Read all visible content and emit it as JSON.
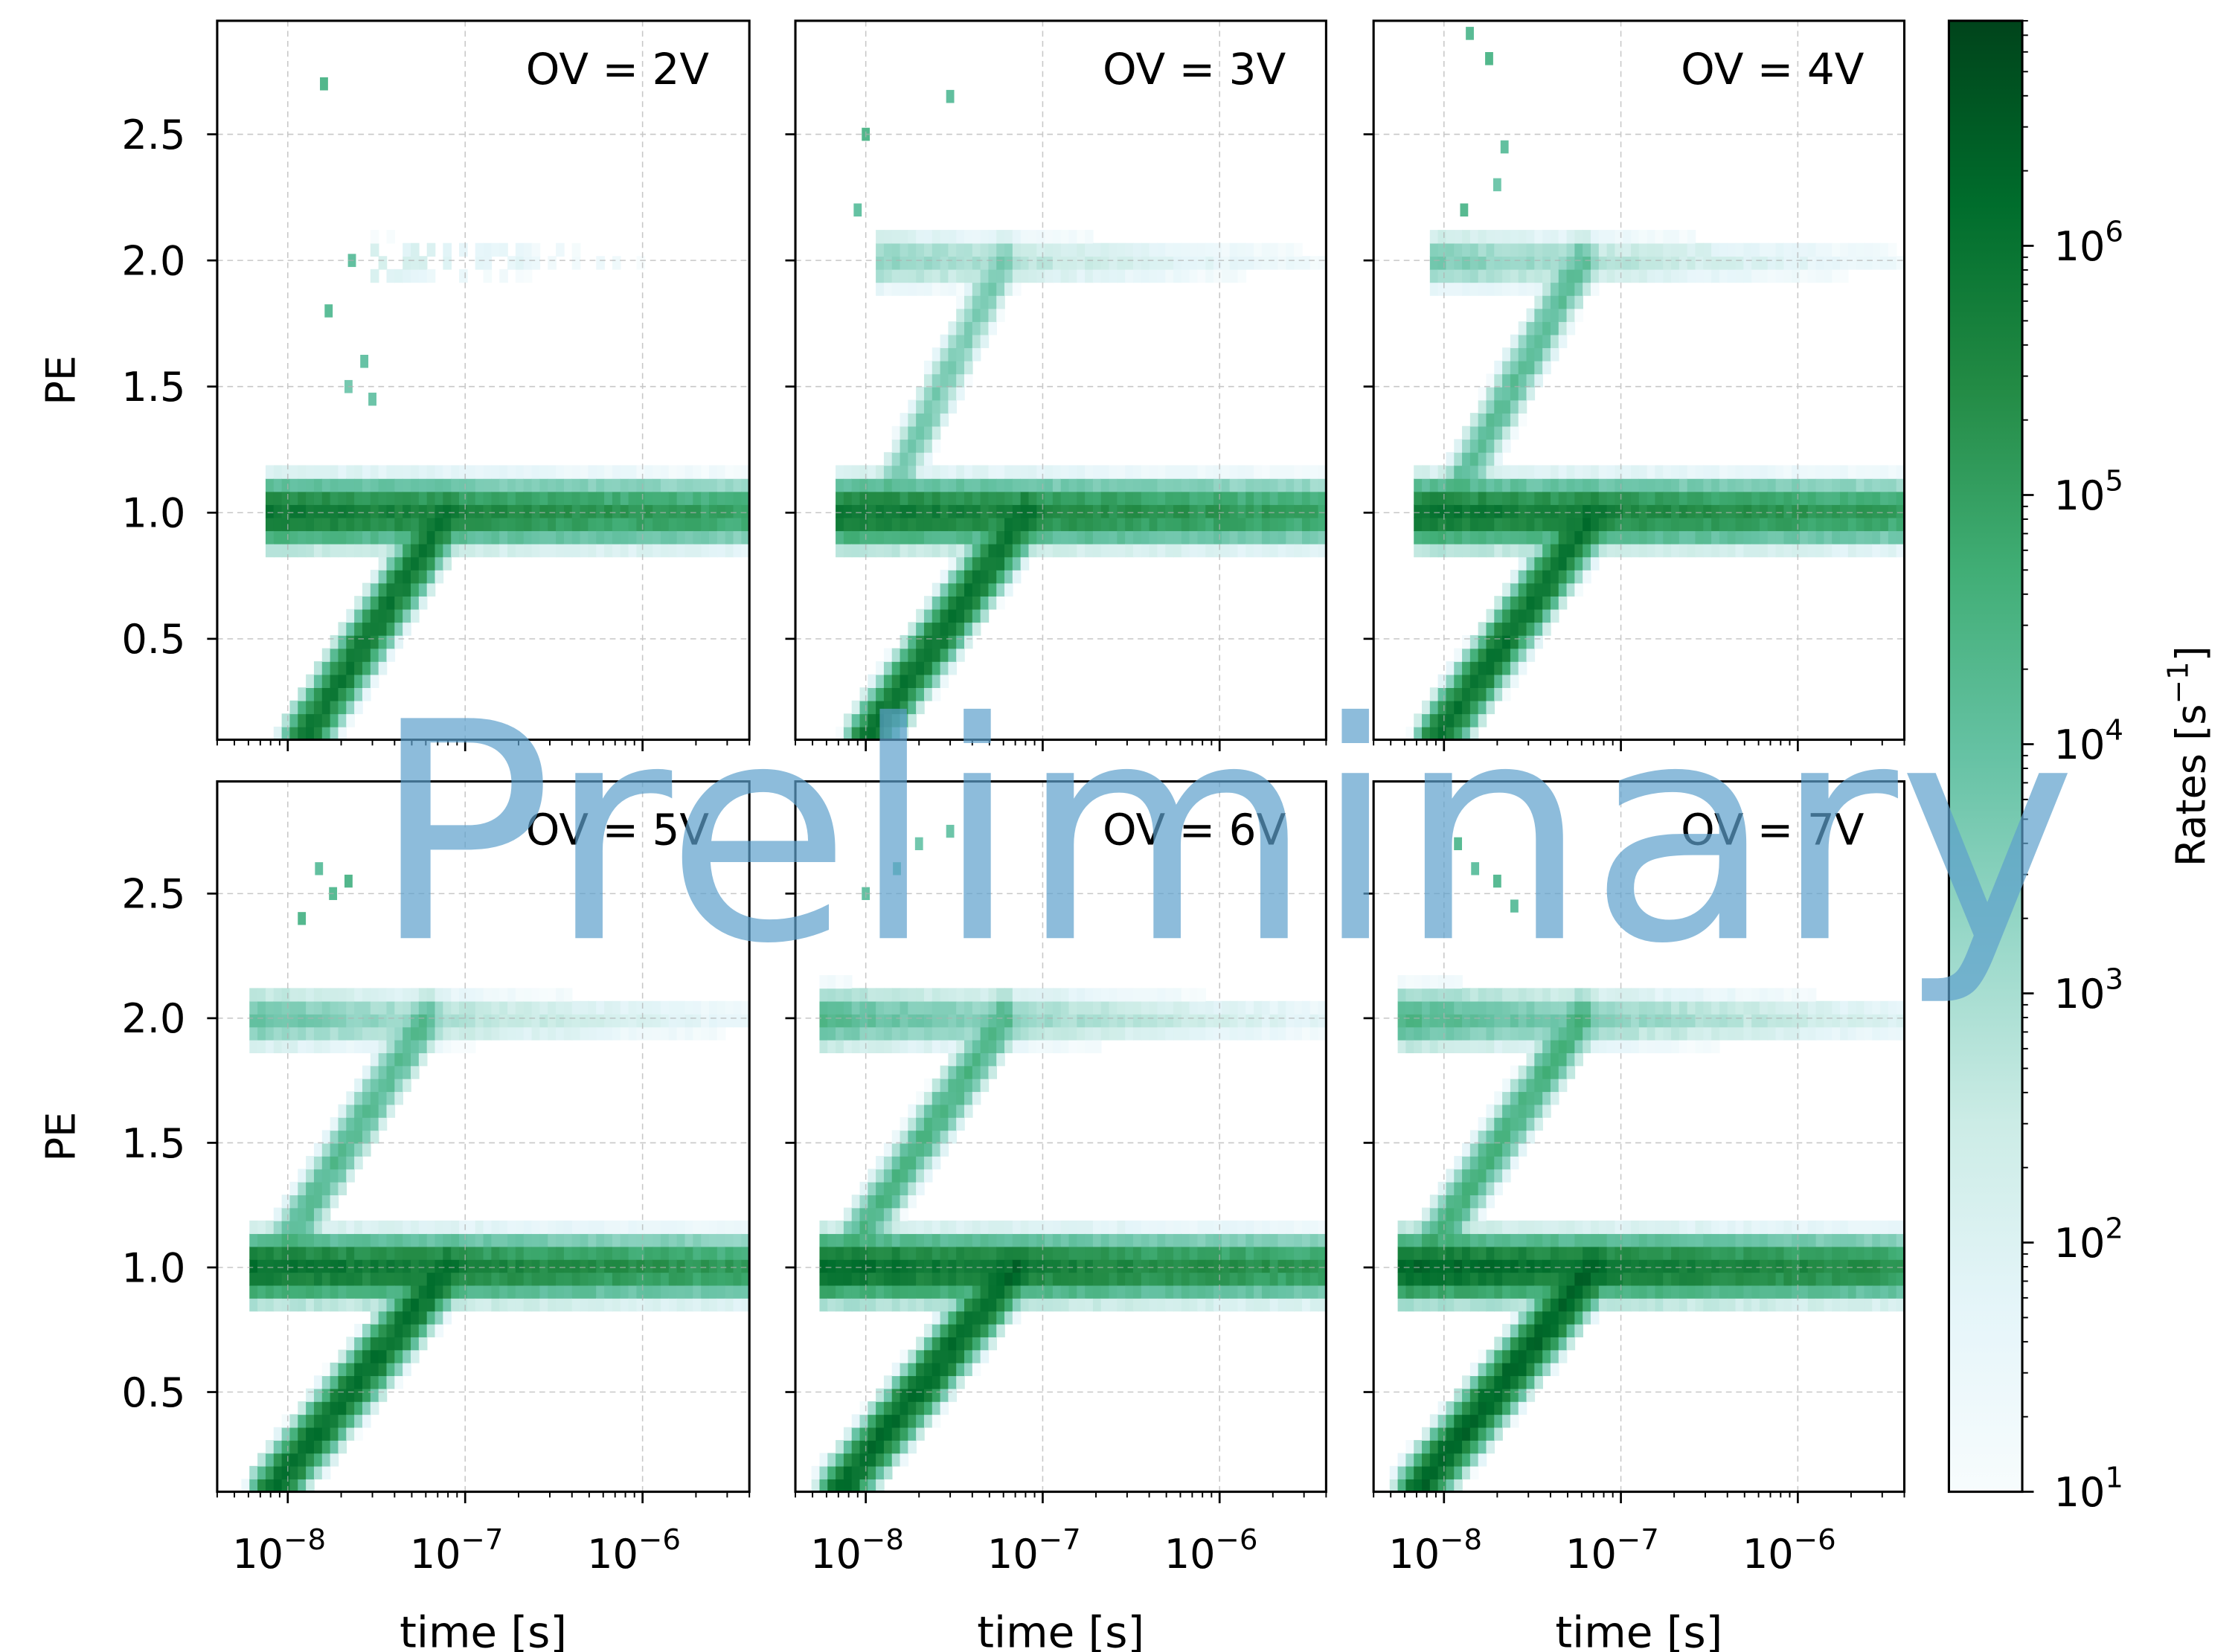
{
  "chart_data": [
    {
      "type": "heatmap",
      "panel_label": "OV = 2V",
      "x_scale": "log",
      "x_range": [
        4e-09,
        4e-06
      ],
      "y_range": [
        0.1,
        2.95
      ],
      "ylabel": "PE",
      "xlabel": "",
      "x_ticks": [
        "10^-8",
        "10^-7",
        "10^-6"
      ],
      "y_ticks": [
        "0.5",
        "1.0",
        "1.5",
        "2.0",
        "2.5"
      ],
      "bands": [
        {
          "y": 1.0,
          "x_from": 8e-09,
          "x_to": 4e-06,
          "peak_rate": 800000
        },
        {
          "y": 2.0,
          "x_from": 3e-08,
          "x_to": 4e-06,
          "peak_rate": 300,
          "sparse": true
        }
      ],
      "diagonal": {
        "from": [
          1.2e-08,
          0.1
        ],
        "to": [
          8e-08,
          1.0
        ],
        "peak_rate": 800000
      },
      "scatter_points": [
        [
          1.6e-08,
          2.7
        ],
        [
          1.7e-08,
          1.8
        ],
        [
          2.2e-08,
          1.5
        ],
        [
          2.7e-08,
          1.6
        ],
        [
          3e-08,
          1.45
        ],
        [
          2.3e-08,
          2.0
        ]
      ]
    },
    {
      "type": "heatmap",
      "panel_label": "OV = 3V",
      "x_scale": "log",
      "x_range": [
        4e-09,
        4e-06
      ],
      "y_range": [
        0.1,
        2.95
      ],
      "ylabel": "",
      "xlabel": "",
      "x_ticks": [
        "10^-8",
        "10^-7",
        "10^-6"
      ],
      "y_ticks": [],
      "bands": [
        {
          "y": 1.0,
          "x_from": 7e-09,
          "x_to": 4e-06,
          "peak_rate": 900000
        },
        {
          "y": 2.0,
          "x_from": 1.2e-08,
          "x_to": 4e-06,
          "peak_rate": 3000
        }
      ],
      "diagonal": {
        "from": [
          1e-08,
          0.1
        ],
        "to": [
          8e-08,
          1.0
        ],
        "peak_rate": 900000
      },
      "diagonal2": {
        "from": [
          1.2e-08,
          1.0
        ],
        "to": [
          6e-08,
          2.0
        ],
        "peak_rate": 5000
      },
      "scatter_points": [
        [
          3e-08,
          2.65
        ],
        [
          1e-08,
          2.5
        ],
        [
          9e-09,
          2.2
        ]
      ]
    },
    {
      "type": "heatmap",
      "panel_label": "OV = 4V",
      "x_scale": "log",
      "x_range": [
        4e-09,
        4e-06
      ],
      "y_range": [
        0.1,
        2.95
      ],
      "ylabel": "",
      "xlabel": "",
      "x_ticks": [
        "10^-8",
        "10^-7",
        "10^-6"
      ],
      "y_ticks": [],
      "bands": [
        {
          "y": 1.0,
          "x_from": 7e-09,
          "x_to": 4e-06,
          "peak_rate": 1000000
        },
        {
          "y": 2.0,
          "x_from": 9e-09,
          "x_to": 4e-06,
          "peak_rate": 5000
        }
      ],
      "diagonal": {
        "from": [
          9e-09,
          0.1
        ],
        "to": [
          7e-08,
          1.0
        ],
        "peak_rate": 1000000
      },
      "diagonal2": {
        "from": [
          1e-08,
          1.0
        ],
        "to": [
          6e-08,
          2.0
        ],
        "peak_rate": 15000
      },
      "scatter_points": [
        [
          1.4e-08,
          2.9
        ],
        [
          2.2e-08,
          2.45
        ],
        [
          2e-08,
          2.3
        ],
        [
          1.8e-08,
          2.8
        ],
        [
          1.3e-08,
          2.2
        ]
      ]
    },
    {
      "type": "heatmap",
      "panel_label": "OV = 5V",
      "x_scale": "log",
      "x_range": [
        4e-09,
        4e-06
      ],
      "y_range": [
        0.1,
        2.95
      ],
      "ylabel": "PE",
      "xlabel": "time [s]",
      "x_ticks": [
        "10^-8",
        "10^-7",
        "10^-6"
      ],
      "y_ticks": [
        "0.5",
        "1.0",
        "1.5",
        "2.0",
        "2.5"
      ],
      "bands": [
        {
          "y": 1.0,
          "x_from": 6.5e-09,
          "x_to": 4e-06,
          "peak_rate": 1200000
        },
        {
          "y": 2.0,
          "x_from": 6.5e-09,
          "x_to": 4e-06,
          "peak_rate": 10000
        }
      ],
      "diagonal": {
        "from": [
          8e-09,
          0.1
        ],
        "to": [
          8e-08,
          1.0
        ],
        "peak_rate": 1200000
      },
      "diagonal2": {
        "from": [
          8e-09,
          1.0
        ],
        "to": [
          6e-08,
          2.0
        ],
        "peak_rate": 20000
      },
      "scatter_points": [
        [
          1.5e-08,
          2.6
        ],
        [
          1.8e-08,
          2.5
        ],
        [
          2.2e-08,
          2.55
        ],
        [
          1.2e-08,
          2.4
        ]
      ]
    },
    {
      "type": "heatmap",
      "panel_label": "OV = 6V",
      "x_scale": "log",
      "x_range": [
        4e-09,
        4e-06
      ],
      "y_range": [
        0.1,
        2.95
      ],
      "ylabel": "",
      "xlabel": "time [s]",
      "x_ticks": [
        "10^-8",
        "10^-7",
        "10^-6"
      ],
      "y_ticks": [],
      "bands": [
        {
          "y": 1.0,
          "x_from": 6e-09,
          "x_to": 4e-06,
          "peak_rate": 1500000
        },
        {
          "y": 2.0,
          "x_from": 6e-09,
          "x_to": 4e-06,
          "peak_rate": 20000
        }
      ],
      "diagonal": {
        "from": [
          7e-09,
          0.1
        ],
        "to": [
          7e-08,
          1.0
        ],
        "peak_rate": 1500000
      },
      "diagonal2": {
        "from": [
          7e-09,
          1.0
        ],
        "to": [
          6e-08,
          2.0
        ],
        "peak_rate": 30000
      },
      "scatter_points": [
        [
          2e-08,
          2.7
        ],
        [
          1.5e-08,
          2.6
        ],
        [
          3e-08,
          2.75
        ],
        [
          1e-08,
          2.5
        ]
      ]
    },
    {
      "type": "heatmap",
      "panel_label": "OV = 7V",
      "x_scale": "log",
      "x_range": [
        4e-09,
        4e-06
      ],
      "y_range": [
        0.1,
        2.95
      ],
      "ylabel": "",
      "xlabel": "time [s]",
      "x_ticks": [
        "10^-8",
        "10^-7",
        "10^-6"
      ],
      "y_ticks": [],
      "bands": [
        {
          "y": 1.0,
          "x_from": 6e-09,
          "x_to": 4e-06,
          "peak_rate": 2000000
        },
        {
          "y": 2.0,
          "x_from": 6e-09,
          "x_to": 4e-06,
          "peak_rate": 30000
        }
      ],
      "diagonal": {
        "from": [
          7e-09,
          0.1
        ],
        "to": [
          7e-08,
          1.0
        ],
        "peak_rate": 2000000
      },
      "diagonal2": {
        "from": [
          7e-09,
          1.0
        ],
        "to": [
          6e-08,
          2.0
        ],
        "peak_rate": 40000
      },
      "scatter_points": [
        [
          1.5e-08,
          2.6
        ],
        [
          2e-08,
          2.55
        ],
        [
          1.2e-08,
          2.7
        ],
        [
          2.5e-08,
          2.45
        ]
      ]
    }
  ],
  "colorbar": {
    "label": "Rates [s",
    "label_exponent": "−1",
    "label_close": "]",
    "scale": "log",
    "range": [
      10,
      8000000
    ],
    "tick_exponents": [
      "1",
      "2",
      "3",
      "4",
      "5",
      "6"
    ],
    "tick_base": "10",
    "cmap": "BuGn",
    "colors": [
      "#f7fcfd",
      "#e5f5f9",
      "#ccece6",
      "#99d8c9",
      "#66c2a4",
      "#41ae76",
      "#238b45",
      "#006d2c",
      "#00441b"
    ]
  },
  "x_tick_base": "10",
  "x_tick_exponents": [
    "−8",
    "−7",
    "−6"
  ],
  "watermark": {
    "text": "Preliminary",
    "color": "#5da0cc"
  }
}
